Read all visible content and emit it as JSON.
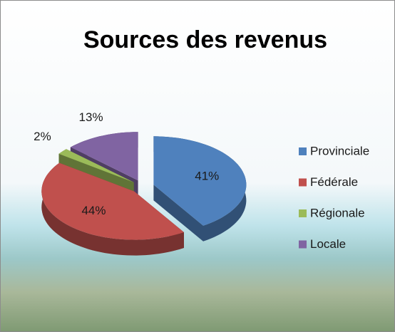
{
  "chart_data": {
    "type": "pie",
    "title": "Sources des revenus",
    "categories": [
      "Provinciale",
      "Fédérale",
      "Régionale",
      "Locale"
    ],
    "values": [
      41,
      44,
      2,
      13
    ],
    "value_labels": [
      "41%",
      "44%",
      "2%",
      "13%"
    ],
    "colors": [
      "#4f81bd",
      "#c0504d",
      "#9bbb59",
      "#8064a2"
    ],
    "legend": "right"
  }
}
